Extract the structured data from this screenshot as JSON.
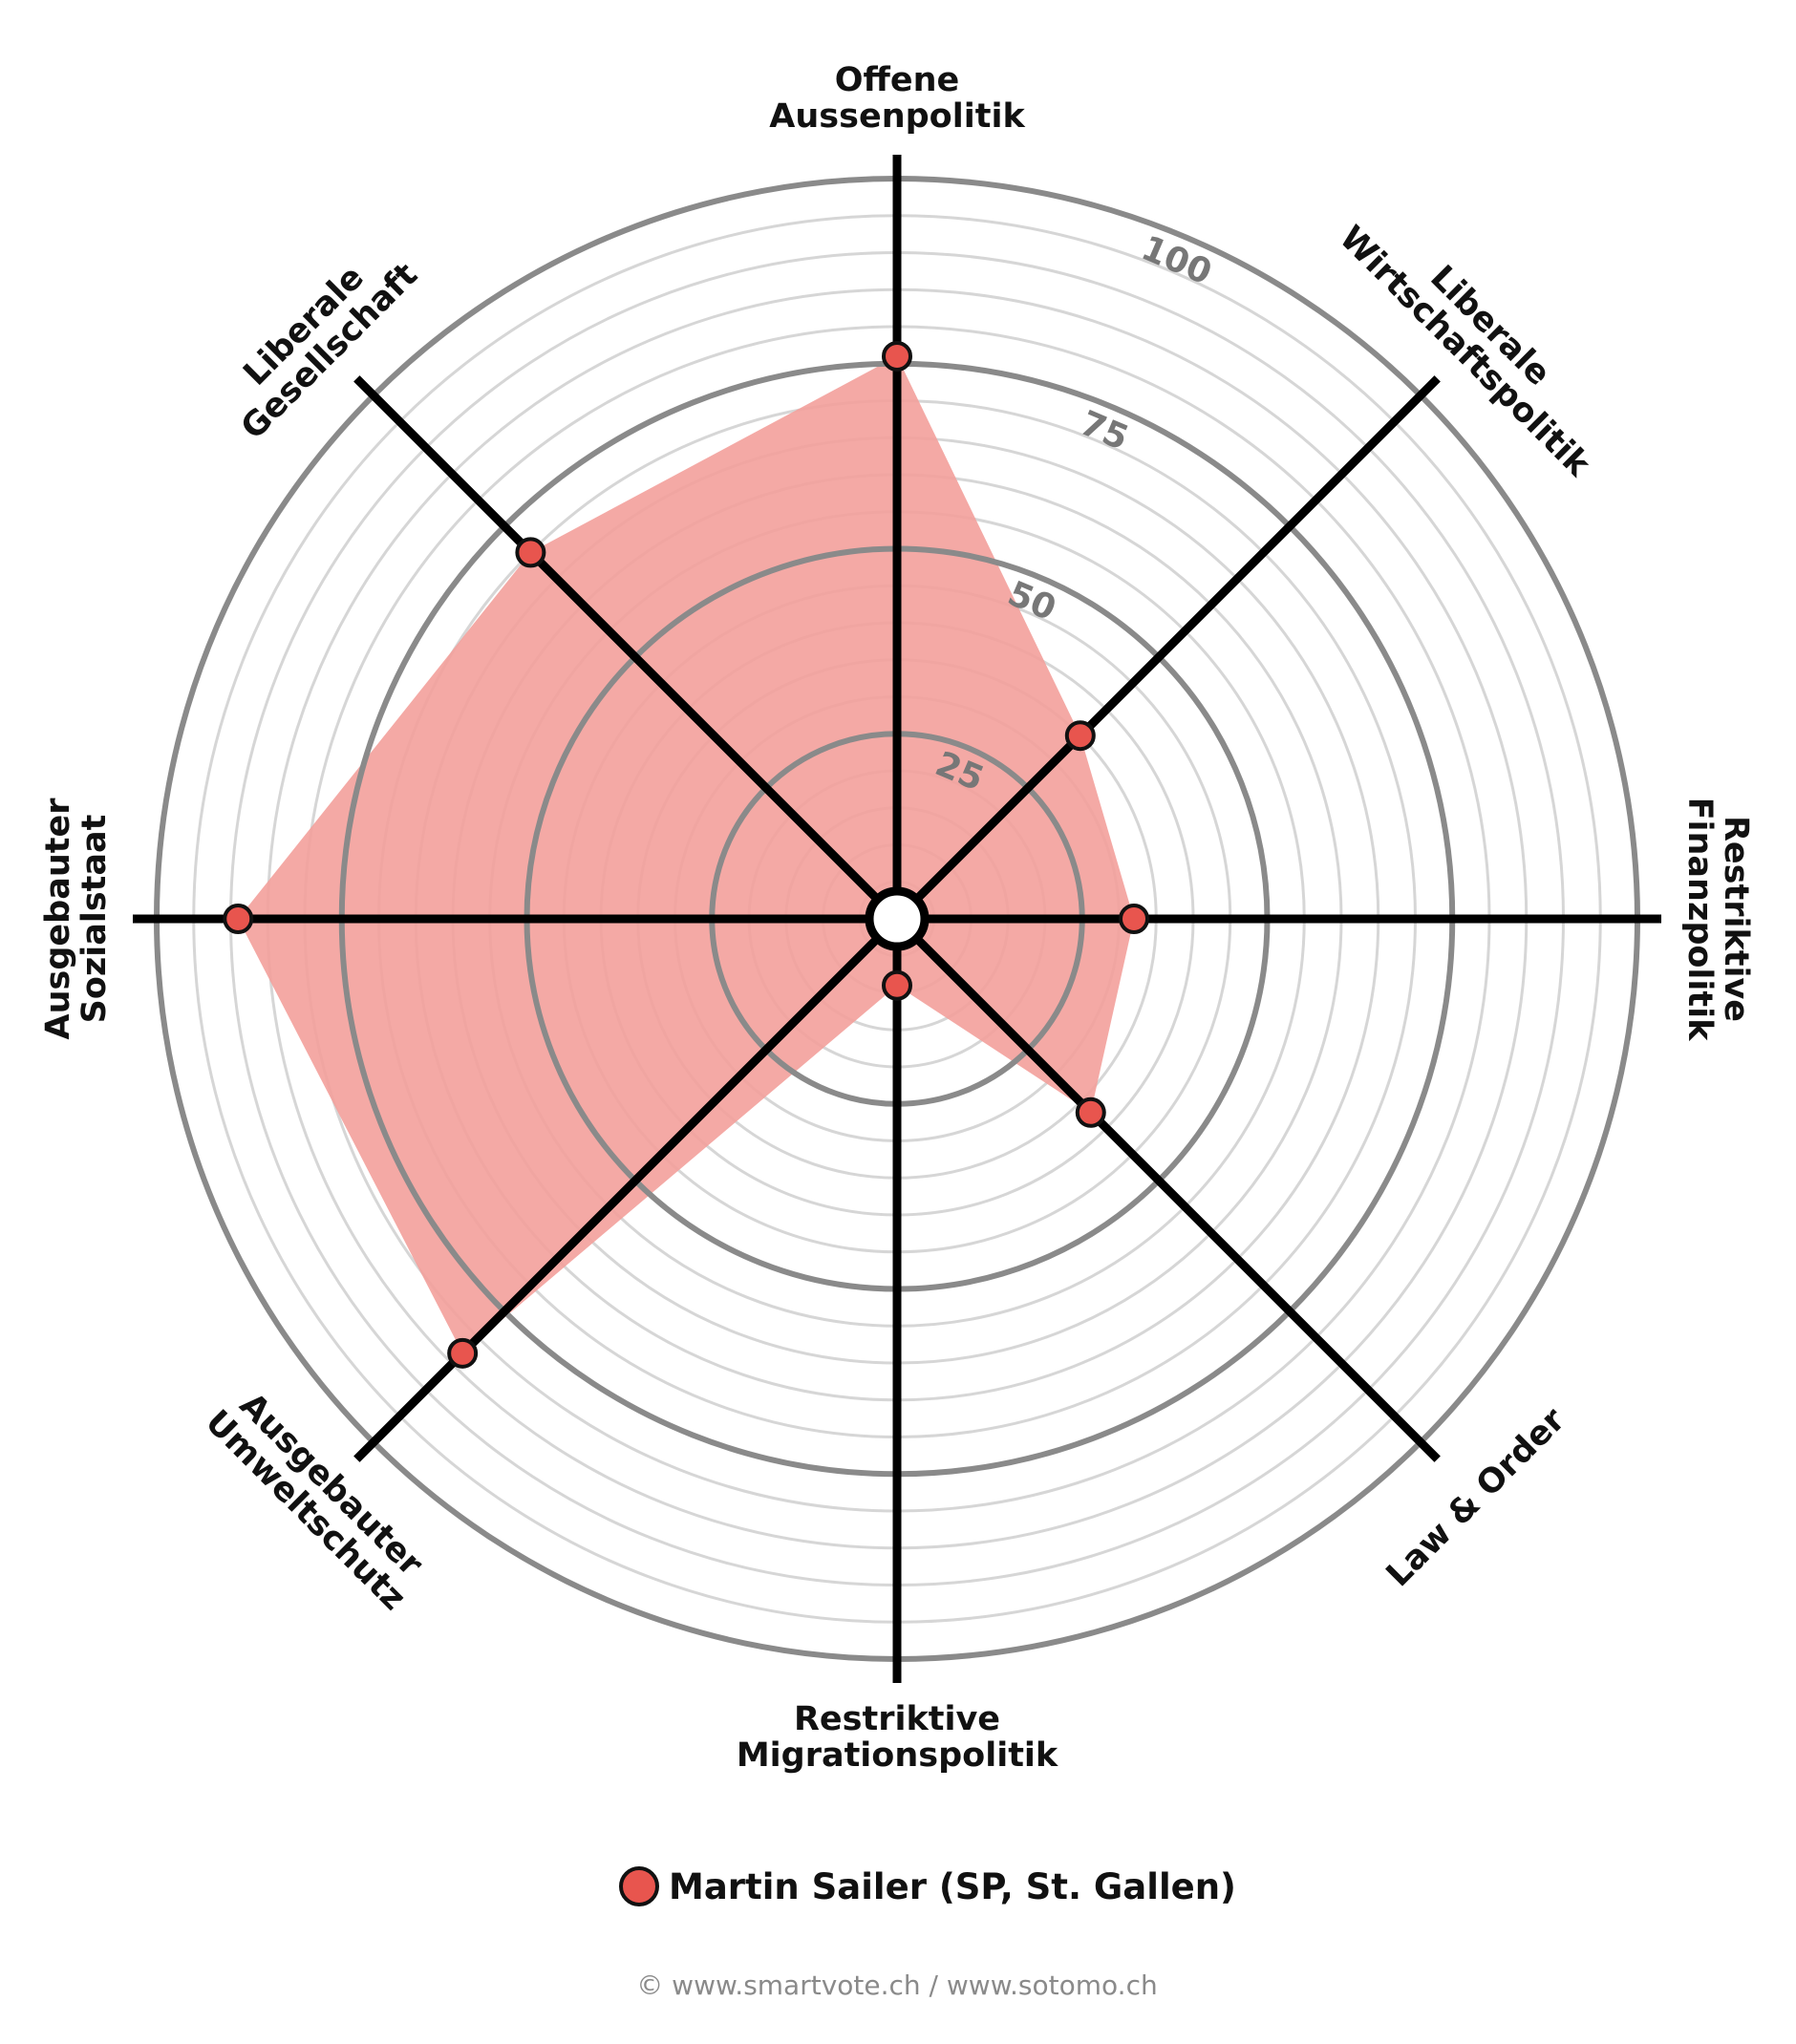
{
  "chart_data": {
    "type": "radar",
    "scale_min": 0,
    "scale_max": 100,
    "ring_labels": [
      "25",
      "50",
      "75",
      "100"
    ],
    "axes": [
      {
        "label_lines": [
          "Offene",
          "Aussenpolitik"
        ],
        "value": 76
      },
      {
        "label_lines": [
          "Liberale",
          "Wirtschaftspolitik"
        ],
        "value": 35
      },
      {
        "label_lines": [
          "Restriktive",
          "Finanzpolitik"
        ],
        "value": 32
      },
      {
        "label_lines": [
          "Law & Order"
        ],
        "value": 37
      },
      {
        "label_lines": [
          "Restriktive",
          "Migrationspolitik"
        ],
        "value": 9
      },
      {
        "label_lines": [
          "Ausgebauter",
          "Umweltschutz"
        ],
        "value": 83
      },
      {
        "label_lines": [
          "Ausgebauter",
          "Sozialstaat"
        ],
        "value": 89
      },
      {
        "label_lines": [
          "Liberale",
          "Gesellschaft"
        ],
        "value": 70
      }
    ],
    "series": [
      {
        "name": "Martin Sailer (SP, St. Gallen)",
        "color": "#e8554e",
        "fill": "#f3a09b"
      }
    ],
    "grid": true,
    "legend_position": "bottom"
  },
  "footer": {
    "credit": "© www.smartvote.ch / www.sotomo.ch"
  }
}
